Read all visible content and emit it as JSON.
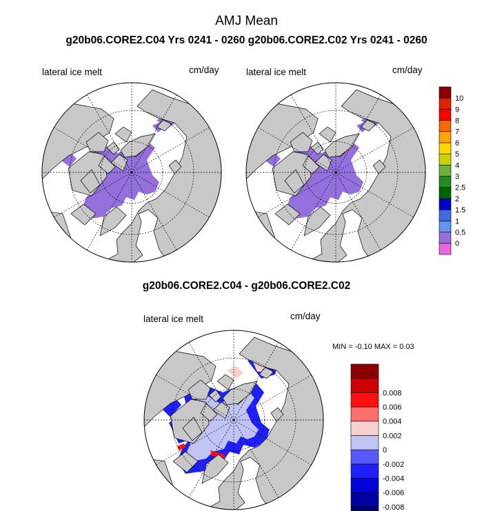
{
  "chart_data": [
    {
      "type": "heatmap",
      "projection": "north-polar-stereographic",
      "title": "AMJ Mean",
      "subtitle": "g20b06.CORE2.C04  Yrs 0241 - 0260",
      "variable": "lateral ice melt",
      "units": "cm/day",
      "colorbar": {
        "levels": [
          "0",
          "0.5",
          "1",
          "1.5",
          "2",
          "2.5",
          "3",
          "4",
          "5",
          "6",
          "7",
          "8",
          "9",
          "10"
        ],
        "colors": [
          "#ee66dd",
          "#9370db",
          "#6495ed",
          "#4169e1",
          "#0000cd",
          "#006400",
          "#228b22",
          "#6cb33c",
          "#c8d400",
          "#ffd700",
          "#ffa500",
          "#ff6600",
          "#ff0000",
          "#dd2200",
          "#8b0000"
        ]
      }
    },
    {
      "type": "heatmap",
      "projection": "north-polar-stereographic",
      "subtitle": "g20b06.CORE2.C02  Yrs 0241 - 0260",
      "variable": "lateral ice melt",
      "units": "cm/day"
    },
    {
      "type": "heatmap",
      "projection": "north-polar-stereographic",
      "title": "g20b06.CORE2.C04 - g20b06.CORE2.C02",
      "variable": "lateral ice melt",
      "units": "cm/day",
      "stats": {
        "min_label": "MIN =",
        "min": "-0.10",
        "max_label": "MAX =",
        "max": "0.03"
      },
      "colorbar": {
        "levels": [
          "-0.008",
          "-0.006",
          "-0.004",
          "-0.002",
          "0",
          "0.002",
          "0.004",
          "0.006",
          "0.008"
        ],
        "colors": [
          "#00006a",
          "#0000a0",
          "#0000d8",
          "#2020ff",
          "#5858ff",
          "#c0c4f4",
          "#f8d0d0",
          "#ff6e6e",
          "#ff1010",
          "#cc0000",
          "#8b0000"
        ]
      }
    }
  ],
  "colors": {
    "land": "#c8c8c8",
    "ocean": "#ffffff",
    "ice_melt_low": "#9370db",
    "diff_near_zero": "#c0c4f4",
    "diff_negative": "#2020ff",
    "diff_positive": "#f8d0d0",
    "diff_strong_positive": "#ff1010"
  }
}
